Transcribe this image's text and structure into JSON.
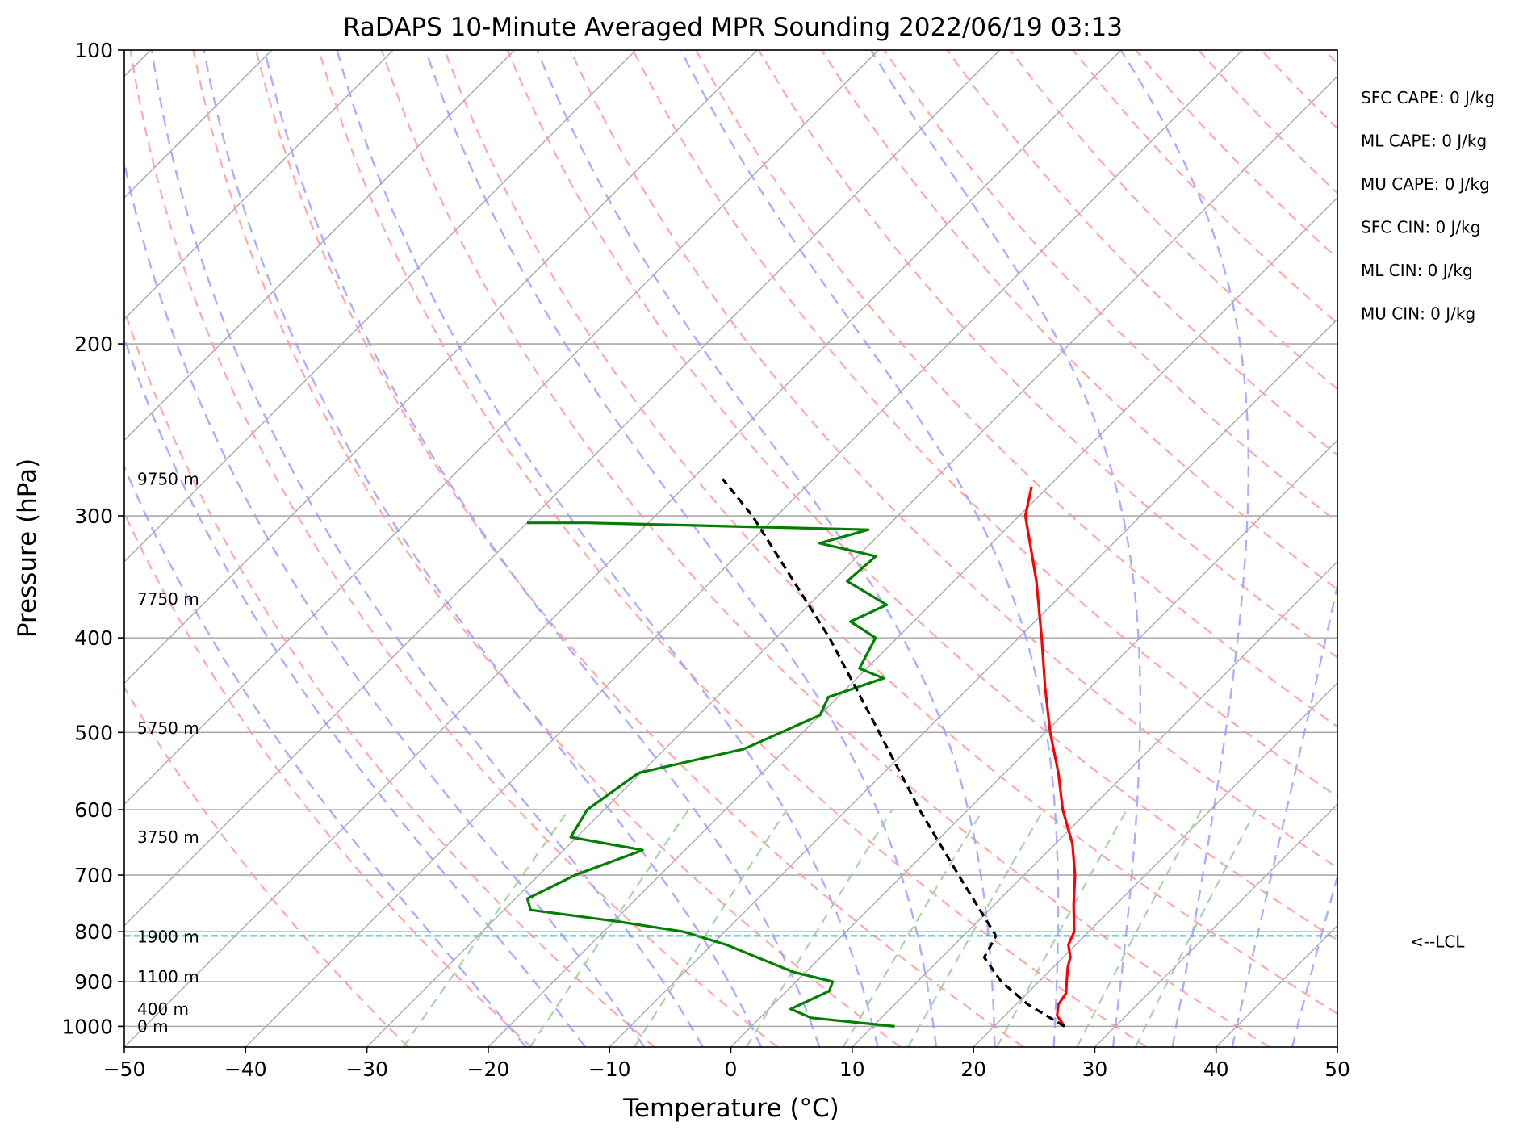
{
  "chart_data": {
    "type": "line",
    "subtype": "skew-t log-p sounding",
    "title": "RaDAPS 10-Minute Averaged MPR Sounding 2022/06/19 03:13",
    "xlabel": "Temperature (°C)",
    "ylabel": "Pressure (hPa)",
    "xlim": [
      -50,
      50
    ],
    "ylim": [
      1050,
      100
    ],
    "y_scale": "log",
    "x_ticks": [
      -50,
      -40,
      -30,
      -20,
      -10,
      0,
      10,
      20,
      30,
      40,
      50
    ],
    "x_tick_labels": [
      "−50",
      "−40",
      "−30",
      "−20",
      "−10",
      "0",
      "10",
      "20",
      "30",
      "40",
      "50"
    ],
    "y_ticks": [
      1000,
      900,
      800,
      700,
      600,
      500,
      400,
      300,
      200,
      100
    ],
    "y_tick_labels": [
      "1000",
      "900",
      "800",
      "700",
      "600",
      "500",
      "400",
      "300",
      "200",
      "100"
    ],
    "grid": true,
    "series": [
      {
        "role": "temperature",
        "color": "#ff0000",
        "style": "solid",
        "points": [
          [
            1000,
            25.8
          ],
          [
            975,
            24.3
          ],
          [
            950,
            23.5
          ],
          [
            925,
            23.2
          ],
          [
            900,
            22.3
          ],
          [
            870,
            21.2
          ],
          [
            850,
            20.6
          ],
          [
            825,
            19.4
          ],
          [
            800,
            18.8
          ],
          [
            750,
            16.5
          ],
          [
            700,
            14.2
          ],
          [
            650,
            11.4
          ],
          [
            600,
            7.8
          ],
          [
            550,
            4.4
          ],
          [
            500,
            0.4
          ],
          [
            450,
            -3.7
          ],
          [
            400,
            -8.1
          ],
          [
            350,
            -13.2
          ],
          [
            300,
            -19.5
          ],
          [
            280,
            -21.4
          ]
        ]
      },
      {
        "role": "dewpoint",
        "color": "#008000",
        "style": "solid",
        "points": [
          [
            1000,
            11.8
          ],
          [
            990,
            8.0
          ],
          [
            980,
            4.2
          ],
          [
            960,
            1.8
          ],
          [
            920,
            3.5
          ],
          [
            900,
            3.0
          ],
          [
            880,
            -1.0
          ],
          [
            850,
            -5.2
          ],
          [
            825,
            -8.8
          ],
          [
            800,
            -13.4
          ],
          [
            780,
            -20.0
          ],
          [
            760,
            -27.8
          ],
          [
            740,
            -29.0
          ],
          [
            720,
            -28.0
          ],
          [
            700,
            -27.0
          ],
          [
            660,
            -23.5
          ],
          [
            640,
            -30.5
          ],
          [
            600,
            -31.4
          ],
          [
            550,
            -30.2
          ],
          [
            520,
            -23.5
          ],
          [
            480,
            -20.0
          ],
          [
            460,
            -20.8
          ],
          [
            440,
            -17.8
          ],
          [
            430,
            -20.6
          ],
          [
            400,
            -21.8
          ],
          [
            385,
            -25.2
          ],
          [
            370,
            -23.6
          ],
          [
            350,
            -28.8
          ],
          [
            330,
            -28.5
          ],
          [
            320,
            -34.2
          ],
          [
            310,
            -31.3
          ],
          [
            305,
            -55.0
          ],
          [
            305,
            -60.0
          ]
        ]
      },
      {
        "role": "parcel",
        "color": "#000000",
        "style": "dashed",
        "points": [
          [
            1000,
            25.8
          ],
          [
            950,
            21.0
          ],
          [
            900,
            16.9
          ],
          [
            850,
            13.5
          ],
          [
            808,
            12.7
          ],
          [
            700,
            4.6
          ],
          [
            600,
            -4.0
          ],
          [
            500,
            -13.7
          ],
          [
            400,
            -25.6
          ],
          [
            300,
            -42.0
          ],
          [
            275,
            -47.5
          ]
        ]
      }
    ],
    "lcl": {
      "pressure": 808,
      "label": "<--LCL",
      "color": "#17becf"
    },
    "height_labels": [
      {
        "pressure": 1000,
        "text": "0 m"
      },
      {
        "pressure": 960,
        "text": "400 m"
      },
      {
        "pressure": 890,
        "text": "1100 m"
      },
      {
        "pressure": 810,
        "text": "1900 m"
      },
      {
        "pressure": 640,
        "text": "3750 m"
      },
      {
        "pressure": 495,
        "text": "5750 m"
      },
      {
        "pressure": 365,
        "text": "7750 m"
      },
      {
        "pressure": 275,
        "text": "9750 m"
      }
    ],
    "stats": [
      "SFC CAPE: 0 J/kg",
      "ML CAPE: 0 J/kg",
      "MU CAPE: 0 J/kg",
      "SFC CIN: 0 J/kg",
      "ML CIN: 0 J/kg",
      "MU CIN: 0 J/kg"
    ],
    "background_lines": {
      "isotherm_color": "#aaaaaa",
      "dry_adiabat_color": "#ff9999",
      "moist_adiabat_color": "#9999ff",
      "mixing_ratio_color": "#99cc99"
    }
  }
}
